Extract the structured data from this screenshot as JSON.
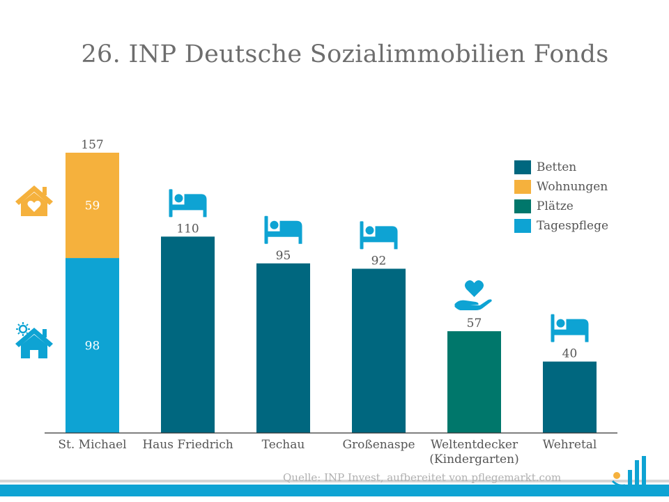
{
  "title": "26. INP Deutsche Sozialimmobilien Fonds",
  "source": "Quelle: INP Invest, aufbereitet von pflegemarkt.com",
  "colors": {
    "betten": "#00677f",
    "wohnungen": "#f5b13d",
    "plaetze": "#00776b",
    "tagespflege": "#0ea3d3",
    "axis": "#333333",
    "label_dark": "#555555",
    "label_light": "#ffffff",
    "icon": "#0ea3d3",
    "icon_orange": "#f5b13d",
    "footer": "#0ea3d3",
    "footer_grey": "#d5d5d5"
  },
  "legend": [
    {
      "label": "Betten",
      "color_key": "betten"
    },
    {
      "label": "Wohnungen",
      "color_key": "wohnungen"
    },
    {
      "label": "Plätze",
      "color_key": "plaetze"
    },
    {
      "label": "Tagespflege",
      "color_key": "tagespflege"
    }
  ],
  "chart_data": {
    "type": "bar",
    "title": "26. INP Deutsche Sozialimmobilien Fonds",
    "xlabel": "",
    "ylabel": "",
    "ylim": [
      0,
      157
    ],
    "grid": false,
    "legend_position": "top-right",
    "categories": [
      {
        "label": [
          "St. Michael"
        ],
        "icon": "",
        "total_label": "157",
        "segments": [
          {
            "series": "Tagespflege",
            "color_key": "tagespflege",
            "value": 98,
            "label": "98"
          },
          {
            "series": "Wohnungen",
            "color_key": "wohnungen",
            "value": 59,
            "label": "59"
          }
        ]
      },
      {
        "label": [
          "Haus Friedrich"
        ],
        "icon": "bed",
        "total_label": "110",
        "segments": [
          {
            "series": "Betten",
            "color_key": "betten",
            "value": 110,
            "label": ""
          }
        ]
      },
      {
        "label": [
          "Techau"
        ],
        "icon": "bed",
        "total_label": "95",
        "segments": [
          {
            "series": "Betten",
            "color_key": "betten",
            "value": 95,
            "label": ""
          }
        ]
      },
      {
        "label": [
          "Großenaspe"
        ],
        "icon": "bed",
        "total_label": "92",
        "segments": [
          {
            "series": "Betten",
            "color_key": "betten",
            "value": 92,
            "label": ""
          }
        ]
      },
      {
        "label": [
          "Weltentdecker",
          "(Kindergarten)"
        ],
        "icon": "hand-heart",
        "total_label": "57",
        "segments": [
          {
            "series": "Plätze",
            "color_key": "plaetze",
            "value": 57,
            "label": ""
          }
        ]
      },
      {
        "label": [
          "Wehretal"
        ],
        "icon": "bed",
        "total_label": "40",
        "segments": [
          {
            "series": "Betten",
            "color_key": "betten",
            "value": 40,
            "label": ""
          }
        ]
      }
    ]
  }
}
